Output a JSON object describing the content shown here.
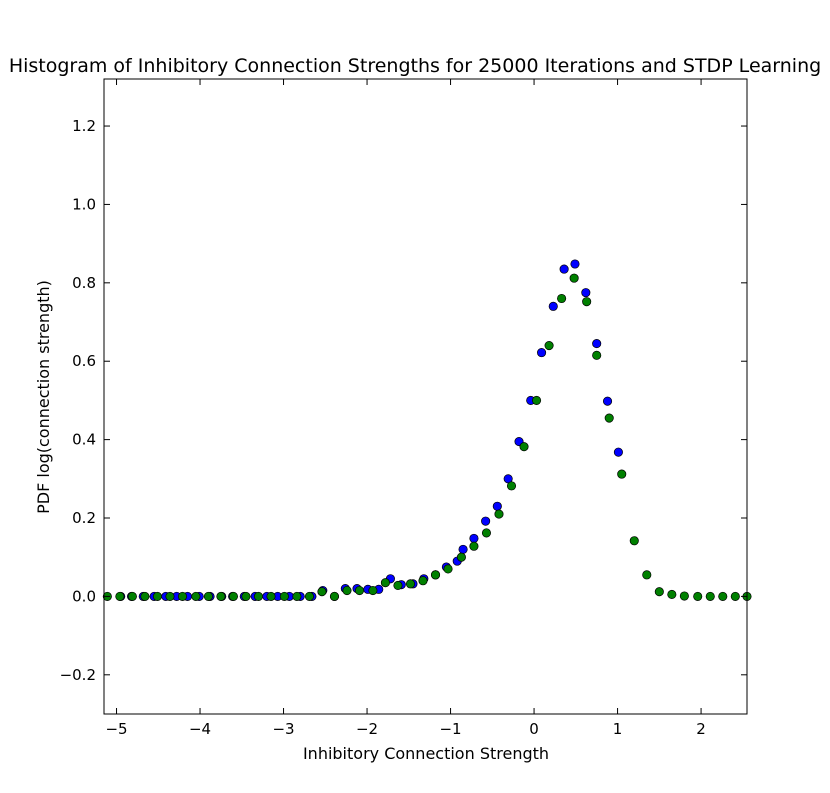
{
  "chart_data": {
    "type": "scatter",
    "title": "Histogram of Inhibitory Connection Strengths for 25000 Iterations and STDP Learning",
    "xlabel": "Inhibitory Connection Strength",
    "ylabel": "PDF log(connection strength)",
    "xlim": [
      -5.15,
      2.55
    ],
    "ylim": [
      -0.3,
      1.32
    ],
    "xticks": [
      -5,
      -4,
      -3,
      -2,
      -1,
      0,
      1,
      2
    ],
    "xtick_labels": [
      "−5",
      "−4",
      "−3",
      "−2",
      "−1",
      "0",
      "1",
      "2"
    ],
    "yticks": [
      -0.2,
      0.0,
      0.2,
      0.4,
      0.6,
      0.8,
      1.0,
      1.2
    ],
    "ytick_labels": [
      "−0.2",
      "0.0",
      "0.2",
      "0.4",
      "0.6",
      "0.8",
      "1.0",
      "1.2"
    ],
    "grid": false,
    "series": [
      {
        "color": "#0000ff",
        "points": [
          [
            -4.95,
            0
          ],
          [
            -4.82,
            0
          ],
          [
            -4.68,
            0
          ],
          [
            -4.55,
            0
          ],
          [
            -4.41,
            0
          ],
          [
            -4.28,
            0
          ],
          [
            -4.15,
            0
          ],
          [
            -4.01,
            0
          ],
          [
            -3.88,
            0
          ],
          [
            -3.74,
            0
          ],
          [
            -3.61,
            0
          ],
          [
            -3.47,
            0
          ],
          [
            -3.34,
            0
          ],
          [
            -3.2,
            0
          ],
          [
            -3.07,
            0
          ],
          [
            -2.93,
            0
          ],
          [
            -2.8,
            0
          ],
          [
            -2.66,
            0
          ],
          [
            -2.53,
            0.015
          ],
          [
            -2.39,
            0
          ],
          [
            -2.26,
            0.02
          ],
          [
            -2.12,
            0.02
          ],
          [
            -1.99,
            0.018
          ],
          [
            -1.86,
            0.018
          ],
          [
            -1.72,
            0.045
          ],
          [
            -1.59,
            0.03
          ],
          [
            -1.45,
            0.032
          ],
          [
            -1.32,
            0.045
          ],
          [
            -1.18,
            0.055
          ],
          [
            -1.05,
            0.075
          ],
          [
            -0.92,
            0.09
          ],
          [
            -0.85,
            0.12
          ],
          [
            -0.72,
            0.148
          ],
          [
            -0.58,
            0.192
          ],
          [
            -0.44,
            0.23
          ],
          [
            -0.31,
            0.3
          ],
          [
            -0.18,
            0.395
          ],
          [
            -0.04,
            0.5
          ],
          [
            0.09,
            0.622
          ],
          [
            0.23,
            0.74
          ],
          [
            0.36,
            0.835
          ],
          [
            0.49,
            0.848
          ],
          [
            0.62,
            0.775
          ],
          [
            0.75,
            0.645
          ],
          [
            0.88,
            0.498
          ],
          [
            1.01,
            0.368
          ]
        ]
      },
      {
        "color": "#008000",
        "points": [
          [
            -5.11,
            0
          ],
          [
            -4.96,
            0
          ],
          [
            -4.81,
            0
          ],
          [
            -4.66,
            0
          ],
          [
            -4.51,
            0
          ],
          [
            -4.36,
            0
          ],
          [
            -4.21,
            0
          ],
          [
            -4.05,
            0
          ],
          [
            -3.9,
            0
          ],
          [
            -3.75,
            0
          ],
          [
            -3.6,
            0
          ],
          [
            -3.45,
            0
          ],
          [
            -3.3,
            0
          ],
          [
            -3.15,
            0
          ],
          [
            -2.99,
            0
          ],
          [
            -2.84,
            0
          ],
          [
            -2.69,
            0
          ],
          [
            -2.54,
            0.012
          ],
          [
            -2.39,
            0
          ],
          [
            -2.24,
            0.015
          ],
          [
            -2.09,
            0.015
          ],
          [
            -1.93,
            0.015
          ],
          [
            -1.78,
            0.035
          ],
          [
            -1.63,
            0.028
          ],
          [
            -1.48,
            0.032
          ],
          [
            -1.33,
            0.04
          ],
          [
            -1.18,
            0.055
          ],
          [
            -1.03,
            0.07
          ],
          [
            -0.87,
            0.1
          ],
          [
            -0.72,
            0.128
          ],
          [
            -0.57,
            0.162
          ],
          [
            -0.42,
            0.21
          ],
          [
            -0.27,
            0.282
          ],
          [
            -0.12,
            0.382
          ],
          [
            0.03,
            0.5
          ],
          [
            0.18,
            0.64
          ],
          [
            0.33,
            0.76
          ],
          [
            0.48,
            0.812
          ],
          [
            0.63,
            0.752
          ],
          [
            0.75,
            0.615
          ],
          [
            0.9,
            0.455
          ],
          [
            1.05,
            0.312
          ],
          [
            1.2,
            0.142
          ],
          [
            1.35,
            0.055
          ],
          [
            1.5,
            0.012
          ],
          [
            1.65,
            0.005
          ],
          [
            1.8,
            0.001
          ],
          [
            1.96,
            0
          ],
          [
            2.11,
            0
          ],
          [
            2.26,
            0
          ],
          [
            2.41,
            0
          ],
          [
            2.55,
            0
          ]
        ]
      }
    ]
  }
}
